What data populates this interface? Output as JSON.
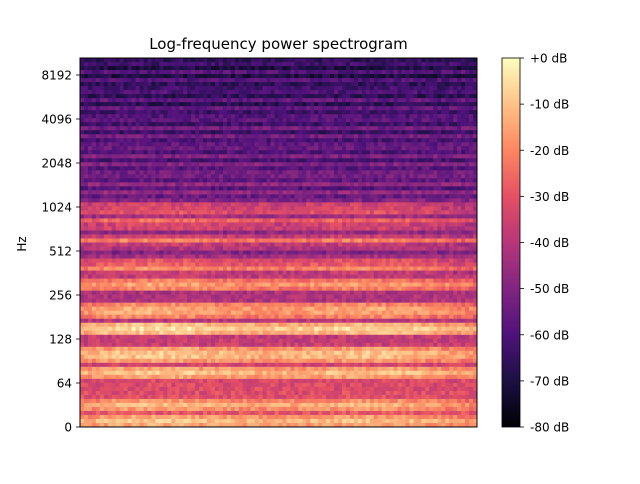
{
  "chart_data": {
    "type": "heatmap",
    "title": "Log-frequency power spectrogram",
    "xlabel": "",
    "ylabel": "Hz",
    "y_scale": "log",
    "y_ticks": [
      "0",
      "64",
      "128",
      "256",
      "512",
      "1024",
      "2048",
      "4096",
      "8192"
    ],
    "x_ticks": [],
    "colormap": "magma",
    "colorbar": {
      "range": [
        -80,
        0
      ],
      "ticks": [
        "+0 dB",
        "-10 dB",
        "-20 dB",
        "-30 dB",
        "-40 dB",
        "-50 dB",
        "-60 dB",
        "-70 dB",
        "-80 dB"
      ]
    },
    "colormap_stops": [
      "#000004",
      "#1c1044",
      "#4f127b",
      "#812581",
      "#b5367a",
      "#e55064",
      "#fb8761",
      "#fec287",
      "#fcfdbf"
    ],
    "grid": false,
    "harmonic_bands_hz": [
      {
        "hz": 35,
        "db": -12
      },
      {
        "hz": 45,
        "db": -14
      },
      {
        "hz": 75,
        "db": -12
      },
      {
        "hz": 100,
        "db": -10
      },
      {
        "hz": 150,
        "db": -8
      },
      {
        "hz": 200,
        "db": -14
      },
      {
        "hz": 300,
        "db": -18
      },
      {
        "hz": 400,
        "db": -24
      },
      {
        "hz": 600,
        "db": -28
      },
      {
        "hz": 800,
        "db": -30
      },
      {
        "hz": 1000,
        "db": -32
      }
    ]
  }
}
